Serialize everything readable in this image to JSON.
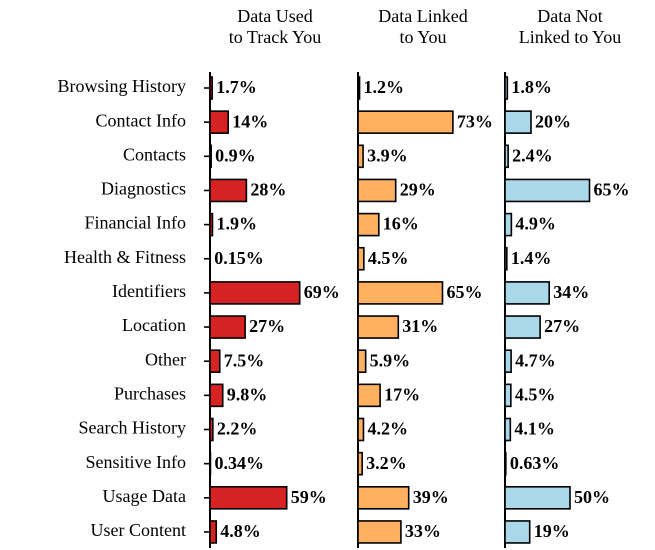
{
  "chart_data": {
    "type": "bar",
    "orientation": "horizontal",
    "categories": [
      "Browsing History",
      "Contact Info",
      "Contacts",
      "Diagnostics",
      "Financial Info",
      "Health & Fitness",
      "Identifiers",
      "Location",
      "Other",
      "Purchases",
      "Search History",
      "Sensitive Info",
      "Usage Data",
      "User Content"
    ],
    "xlim": [
      0,
      100
    ],
    "series": [
      {
        "name": "Data Used\nto Track You",
        "color": "#d62222",
        "values": [
          1.7,
          14,
          0.9,
          28,
          1.9,
          0.15,
          69,
          27,
          7.5,
          9.8,
          2.2,
          0.34,
          59,
          4.8
        ],
        "value_labels": [
          "1.7%",
          "14%",
          "0.9%",
          "28%",
          "1.9%",
          "0.15%",
          "69%",
          "27%",
          "7.5%",
          "9.8%",
          "2.2%",
          "0.34%",
          "59%",
          "4.8%"
        ]
      },
      {
        "name": "Data Linked\nto You",
        "color": "#ffb060",
        "values": [
          1.2,
          73,
          3.9,
          29,
          16,
          4.5,
          65,
          31,
          5.9,
          17,
          4.2,
          3.2,
          39,
          33
        ],
        "value_labels": [
          "1.2%",
          "73%",
          "3.9%",
          "29%",
          "16%",
          "4.5%",
          "65%",
          "31%",
          "5.9%",
          "17%",
          "4.2%",
          "3.2%",
          "39%",
          "33%"
        ]
      },
      {
        "name": "Data Not\nLinked to You",
        "color": "#a8d8ea",
        "values": [
          1.8,
          20,
          2.4,
          65,
          4.9,
          1.4,
          34,
          27,
          4.7,
          4.5,
          4.1,
          0.63,
          50,
          19
        ],
        "value_labels": [
          "1.8%",
          "20%",
          "2.4%",
          "65%",
          "4.9%",
          "1.4%",
          "34%",
          "27%",
          "4.7%",
          "4.5%",
          "4.1%",
          "0.63%",
          "50%",
          "19%"
        ]
      }
    ]
  }
}
